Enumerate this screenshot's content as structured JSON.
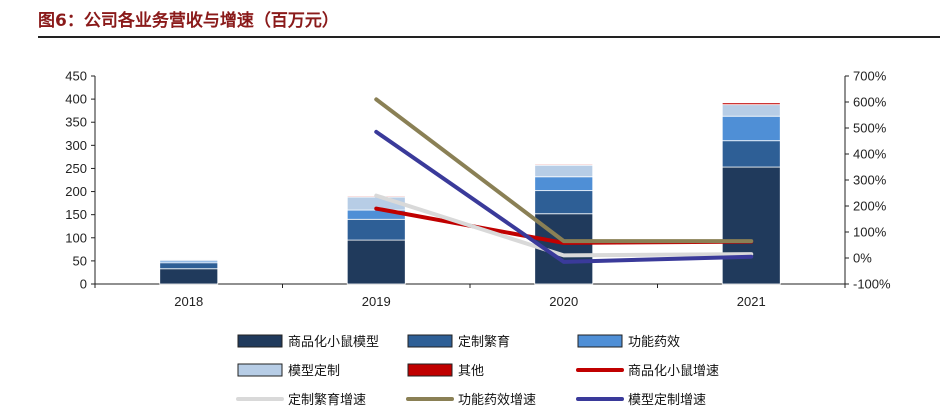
{
  "title": "图6：公司各业务营收与增速（百万元）",
  "chart_data": {
    "type": "bar",
    "stacked": true,
    "categories": [
      "2018",
      "2019",
      "2020",
      "2021"
    ],
    "left_axis": {
      "ylim": [
        0,
        450
      ],
      "ticks": [
        0,
        50,
        100,
        150,
        200,
        250,
        300,
        350,
        400,
        450
      ]
    },
    "right_axis": {
      "ylim": [
        -100,
        700
      ],
      "ticks": [
        "-100%",
        "0%",
        "100%",
        "200%",
        "300%",
        "400%",
        "500%",
        "600%",
        "700%"
      ],
      "tick_values": [
        -100,
        0,
        100,
        200,
        300,
        400,
        500,
        600,
        700
      ]
    },
    "bar_series": [
      {
        "name": "商品化小鼠模型",
        "color": "#203a5c",
        "values": [
          33,
          95,
          152,
          253
        ]
      },
      {
        "name": "定制繁育",
        "color": "#2e5f96",
        "values": [
          13,
          45,
          50,
          57
        ]
      },
      {
        "name": "功能药效",
        "color": "#4f8fd6",
        "values": [
          4,
          20,
          30,
          53
        ]
      },
      {
        "name": "模型定制",
        "color": "#b7cde6",
        "values": [
          3,
          28,
          25,
          25
        ]
      },
      {
        "name": "其他",
        "color": "#c00000",
        "values": [
          1,
          2,
          2,
          4
        ]
      }
    ],
    "line_series": [
      {
        "name": "商品化小鼠增速",
        "color": "#c00000",
        "points": [
          [
            "2019",
            190
          ],
          [
            "2020",
            58
          ],
          [
            "2021",
            63
          ]
        ]
      },
      {
        "name": "定制繁育增速",
        "color": "#d9d9d9",
        "points": [
          [
            "2019",
            240
          ],
          [
            "2020",
            10
          ],
          [
            "2021",
            15
          ]
        ]
      },
      {
        "name": "功能药效增速",
        "color": "#8a8055",
        "points": [
          [
            "2019",
            610
          ],
          [
            "2020",
            65
          ],
          [
            "2021",
            65
          ]
        ]
      },
      {
        "name": "模型定制增速",
        "color": "#3a3a9a",
        "points": [
          [
            "2019",
            485
          ],
          [
            "2020",
            -15
          ],
          [
            "2021",
            5
          ]
        ]
      }
    ],
    "legend_position": "bottom",
    "grid": false
  }
}
